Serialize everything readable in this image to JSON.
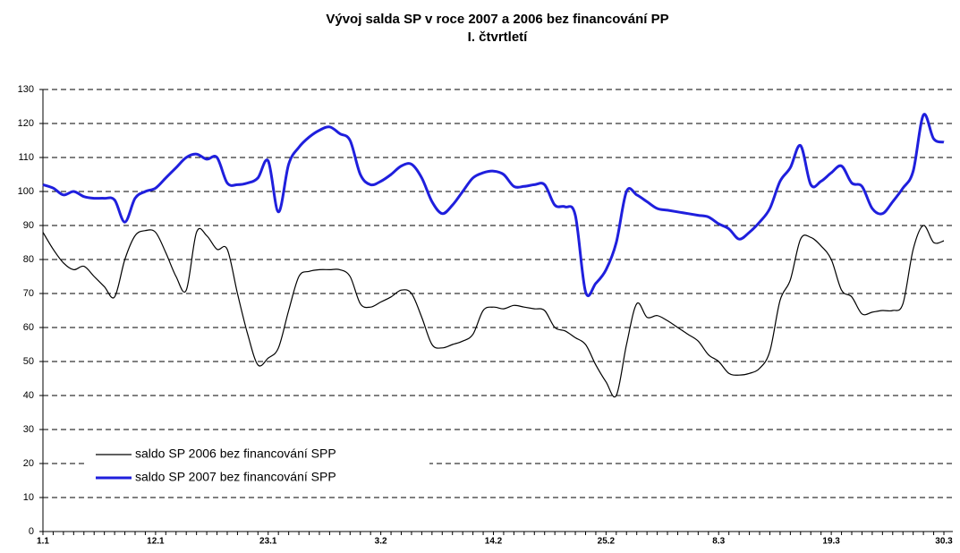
{
  "chart_data": {
    "type": "line",
    "title": "Vývoj salda SP v roce 2007 a 2006 bez financování PP",
    "subtitle": "I. čtvrtletí",
    "categories": [
      "1.1",
      null,
      null,
      null,
      null,
      null,
      null,
      null,
      null,
      null,
      null,
      "12.1",
      null,
      null,
      null,
      null,
      null,
      null,
      null,
      null,
      null,
      null,
      "23.1",
      null,
      null,
      null,
      null,
      null,
      null,
      null,
      null,
      null,
      null,
      "3.2",
      null,
      null,
      null,
      null,
      null,
      null,
      null,
      null,
      null,
      null,
      "14.2",
      null,
      null,
      null,
      null,
      null,
      null,
      null,
      null,
      null,
      null,
      "25.2",
      null,
      null,
      null,
      null,
      null,
      null,
      null,
      null,
      null,
      null,
      "8.3",
      null,
      null,
      null,
      null,
      null,
      null,
      null,
      null,
      null,
      null,
      "19.3",
      null,
      null,
      null,
      null,
      null,
      null,
      null,
      null,
      null,
      null,
      "30.3"
    ],
    "series": [
      {
        "name": "saldo SP 2006 bez financování SPP",
        "color": "#000000",
        "width": 1.2,
        "values": [
          88,
          83,
          79,
          77,
          78,
          75,
          72,
          69,
          80,
          87,
          88.5,
          88,
          82,
          75,
          71,
          88,
          87,
          83,
          83,
          70,
          58,
          49,
          51,
          54,
          65,
          75,
          76.5,
          77,
          77,
          77,
          75,
          67,
          66,
          67.5,
          69,
          71,
          70,
          63,
          55,
          54,
          55,
          56,
          58,
          65,
          66,
          65.5,
          66.5,
          66,
          65.5,
          65,
          60,
          59,
          57,
          55,
          49,
          44,
          40,
          55,
          67,
          63,
          63.5,
          62,
          60,
          58,
          56,
          52,
          50,
          46.5,
          46,
          46.5,
          48,
          53,
          68,
          74,
          86,
          86.5,
          84,
          80,
          71,
          69,
          64,
          64.5,
          65,
          65,
          67,
          83,
          90,
          85,
          85.5
        ]
      },
      {
        "name": "saldo SP 2007 bez financování SPP",
        "color": "#1f1fdd",
        "width": 3,
        "values": [
          102,
          101,
          99,
          100,
          98.5,
          98,
          98,
          97.5,
          91,
          98,
          100,
          101,
          104,
          107,
          110,
          111,
          109.5,
          110,
          102.5,
          102,
          102.5,
          104,
          109,
          94,
          108,
          113,
          116,
          118,
          119,
          117,
          115,
          105,
          102,
          103,
          105,
          107.5,
          108,
          104,
          97,
          93.5,
          96,
          100,
          104,
          105.5,
          106,
          105,
          101.5,
          101.5,
          102,
          102,
          96,
          95.5,
          93,
          70.5,
          73,
          77,
          85,
          100,
          99,
          97,
          95,
          94.5,
          94,
          93.5,
          93,
          92.5,
          90.5,
          89,
          86,
          88,
          91,
          95,
          103,
          107,
          113.5,
          102,
          103,
          105.5,
          107.5,
          102.5,
          101.5,
          95,
          93.5,
          97,
          101,
          106,
          122.5,
          115.5,
          114.5
        ]
      }
    ],
    "ylim": [
      0,
      130
    ],
    "yticks": [
      0,
      10,
      20,
      30,
      40,
      50,
      60,
      70,
      80,
      90,
      100,
      110,
      120,
      130
    ],
    "grid": true,
    "legend": "lower left"
  }
}
